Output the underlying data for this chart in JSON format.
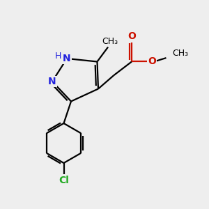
{
  "bg_color": "#eeeeee",
  "bond_color": "#000000",
  "n_color": "#2222dd",
  "o_color": "#cc1100",
  "cl_color": "#22aa22",
  "bond_lw": 1.6,
  "font_size": 10,
  "fig_size": [
    3.0,
    3.0
  ],
  "dpi": 100,
  "xlim": [
    0,
    10
  ],
  "ylim": [
    0,
    10
  ]
}
